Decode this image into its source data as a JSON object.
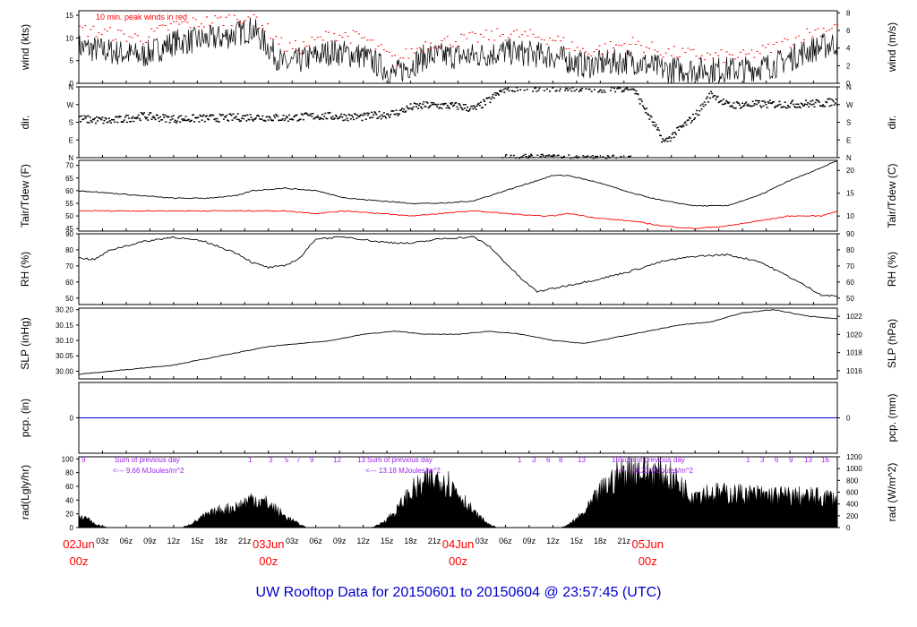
{
  "title": "UW Rooftop Data for 20150601  to  20150604 @ 23:57:45  (UTC)",
  "colors": {
    "title": "#0000cc",
    "peak": "#ff0000",
    "dew": "#ff0000",
    "pcp": "#0000cc",
    "rad_annot": "#a020f0",
    "date": "#ff0000",
    "series": "#000000"
  },
  "chart_data": [
    {
      "id": "wind",
      "type": "line",
      "ylabel_left": "wind (kts)",
      "ylabel_right": "wind (m/s)",
      "ylim": [
        0,
        16
      ],
      "yticks_left": [
        "0",
        "5",
        "10",
        "15"
      ],
      "ylim_right": [
        0,
        8.23
      ],
      "yticks_right": [
        "0",
        "2",
        "4",
        "6",
        "8"
      ],
      "annotation": "10 min. peak winds in red",
      "x": [
        0,
        4,
        8,
        12,
        18,
        22,
        26,
        28,
        32,
        36,
        40,
        44,
        50,
        54,
        60,
        64,
        70,
        74,
        80,
        84,
        88,
        92,
        96
      ],
      "series": [
        {
          "values": [
            8,
            7,
            6,
            9,
            10,
            12,
            4,
            5,
            7,
            6,
            2,
            6,
            6,
            7,
            6,
            4,
            5,
            3,
            3,
            3,
            4,
            7,
            9
          ]
        },
        {
          "values": [
            12,
            11,
            10,
            13,
            14,
            15,
            8,
            8,
            11,
            10,
            5,
            9,
            10,
            11,
            10,
            7,
            9,
            7,
            6,
            6,
            8,
            11,
            13
          ]
        }
      ]
    },
    {
      "id": "dir",
      "type": "scatter",
      "ylabel_left": "dir.",
      "ylabel_right": "dir.",
      "ylim": [
        0,
        360
      ],
      "yticks_left": [
        "N",
        "E",
        "S",
        "W",
        "N"
      ],
      "x": [
        0,
        4,
        8,
        12,
        18,
        22,
        26,
        30,
        36,
        40,
        42,
        44,
        48,
        50,
        52,
        54,
        60,
        66,
        70,
        74,
        76,
        78,
        80,
        82,
        86,
        90,
        94,
        96
      ],
      "values": [
        200,
        190,
        215,
        200,
        205,
        210,
        205,
        215,
        210,
        230,
        260,
        270,
        265,
        250,
        300,
        360,
        360,
        355,
        360,
        80,
        150,
        220,
        330,
        270,
        275,
        275,
        280,
        290
      ]
    },
    {
      "id": "temp",
      "type": "line",
      "ylabel_left": "Tair/Tdew (F)",
      "ylabel_right": "Tair/Tdew (C)",
      "ylim": [
        44,
        72
      ],
      "yticks_left": [
        "45",
        "50",
        "55",
        "60",
        "65",
        "70"
      ],
      "ylim_right": [
        6.7,
        22.2
      ],
      "yticks_right": [
        "10",
        "15",
        "20"
      ],
      "x": [
        0,
        4,
        8,
        12,
        16,
        20,
        22,
        26,
        30,
        34,
        38,
        42,
        46,
        50,
        54,
        58,
        60,
        62,
        66,
        70,
        74,
        78,
        82,
        86,
        90,
        94,
        96
      ],
      "series": [
        {
          "name": "Tair",
          "values": [
            60,
            59,
            58,
            57,
            57,
            58,
            60,
            61,
            60,
            57,
            56,
            55,
            55,
            56,
            60,
            64,
            66,
            66,
            63,
            59,
            56,
            54,
            54,
            58,
            64,
            69,
            72
          ]
        },
        {
          "name": "Tdew",
          "values": [
            52,
            52,
            52,
            52,
            52,
            52,
            52,
            52,
            51,
            52,
            51,
            50,
            51,
            52,
            51,
            50,
            50,
            51,
            49,
            48,
            46,
            45,
            46,
            48,
            50,
            50,
            52
          ]
        }
      ]
    },
    {
      "id": "rh",
      "type": "line",
      "ylabel_left": "RH (%)",
      "ylabel_right": "RH (%)",
      "ylim": [
        46,
        90
      ],
      "yticks_left": [
        "50",
        "60",
        "70",
        "80",
        "90"
      ],
      "x": [
        0,
        2,
        4,
        8,
        12,
        16,
        20,
        22,
        24,
        26,
        28,
        30,
        34,
        38,
        42,
        46,
        50,
        52,
        54,
        56,
        58,
        60,
        62,
        66,
        70,
        74,
        78,
        82,
        86,
        90,
        94,
        96
      ],
      "series": [
        {
          "values": [
            75,
            74,
            80,
            85,
            88,
            85,
            78,
            72,
            69,
            70,
            75,
            87,
            88,
            85,
            84,
            87,
            88,
            82,
            72,
            62,
            54,
            56,
            58,
            62,
            67,
            73,
            76,
            77,
            73,
            63,
            52,
            51
          ]
        }
      ]
    },
    {
      "id": "slp",
      "type": "line",
      "ylabel_left": "SLP (inHg)",
      "ylabel_right": "SLP (hPa)",
      "ylim": [
        29.975,
        30.205
      ],
      "yticks_left": [
        "30.00",
        "30.05",
        "30.10",
        "30.15",
        "30.20"
      ],
      "ylim_right": [
        1015.1,
        1022.9
      ],
      "yticks_right": [
        "1016",
        "1018",
        "1020",
        "1022"
      ],
      "x": [
        0,
        4,
        8,
        12,
        16,
        20,
        24,
        28,
        32,
        36,
        40,
        44,
        48,
        52,
        56,
        60,
        64,
        68,
        72,
        76,
        80,
        84,
        88,
        92,
        96
      ],
      "series": [
        {
          "values": [
            29.99,
            30.0,
            30.01,
            30.02,
            30.04,
            30.06,
            30.08,
            30.09,
            30.1,
            30.12,
            30.13,
            30.12,
            30.12,
            30.13,
            30.12,
            30.1,
            30.09,
            30.11,
            30.13,
            30.15,
            30.16,
            30.19,
            30.2,
            30.18,
            30.17
          ]
        }
      ]
    },
    {
      "id": "pcp",
      "type": "line",
      "ylabel_left": "pcp. (in)",
      "ylabel_right": "pcp. (mm)",
      "ylim": [
        -1,
        1
      ],
      "yticks_left": [
        "0"
      ],
      "yticks_right": [
        "0"
      ],
      "x": [
        0,
        96
      ],
      "series": [
        {
          "values": [
            0,
            0
          ]
        }
      ]
    },
    {
      "id": "rad",
      "type": "area",
      "ylabel_left": "rad(Lgly/hr)",
      "ylabel_right": "rad (W/m^2)",
      "ylim": [
        0,
        103
      ],
      "yticks_left": [
        "0",
        "20",
        "40",
        "60",
        "80",
        "100"
      ],
      "ylim_right": [
        0,
        1200
      ],
      "yticks_right": [
        "0",
        "200",
        "400",
        "600",
        "800",
        "1000",
        "1200"
      ],
      "x": [
        0,
        1,
        2,
        3,
        4,
        13,
        14,
        16,
        18,
        20,
        22,
        24,
        26,
        28,
        29,
        37,
        38,
        40,
        42,
        44,
        46,
        48,
        50,
        52,
        53,
        61,
        62,
        64,
        66,
        68,
        70,
        72,
        74,
        76,
        77,
        96
      ],
      "values": [
        15,
        18,
        6,
        2,
        0,
        0,
        5,
        20,
        30,
        35,
        50,
        40,
        20,
        5,
        0,
        0,
        5,
        25,
        60,
        75,
        85,
        60,
        25,
        5,
        0,
        0,
        5,
        25,
        60,
        85,
        100,
        95,
        90,
        75,
        60,
        50
      ],
      "daily_sums": [
        {
          "label": "Sum of previous day",
          "value": "<--- 9.66 MJoules/m^2"
        },
        {
          "label": "Sum of previous day",
          "value": "<--- 13.18 MJoules/m^2"
        },
        {
          "label": "Sum of previous day",
          "value": "<--- 16.21 MJoules/m^2"
        }
      ],
      "hour_marks": [
        [
          "9"
        ],
        [
          "1",
          "3",
          "5",
          "7",
          "9",
          "12"
        ],
        [
          "13",
          "1",
          "3",
          "6",
          "8",
          "13"
        ],
        [
          "16",
          "1",
          "3",
          "6",
          "9",
          "13",
          "16"
        ]
      ]
    }
  ],
  "time_axis": {
    "ticks": [
      "03z",
      "06z",
      "09z",
      "12z",
      "15z",
      "18z",
      "21z",
      "03z",
      "06z",
      "09z",
      "12z",
      "15z",
      "18z",
      "21z",
      "03z",
      "06z",
      "09z",
      "12z",
      "15z",
      "18z",
      "21z"
    ],
    "dates": [
      {
        "day": "02Jun",
        "hour": "00z"
      },
      {
        "day": "03Jun",
        "hour": "00z"
      },
      {
        "day": "04Jun",
        "hour": "00z"
      },
      {
        "day": "05Jun",
        "hour": "00z"
      }
    ]
  }
}
